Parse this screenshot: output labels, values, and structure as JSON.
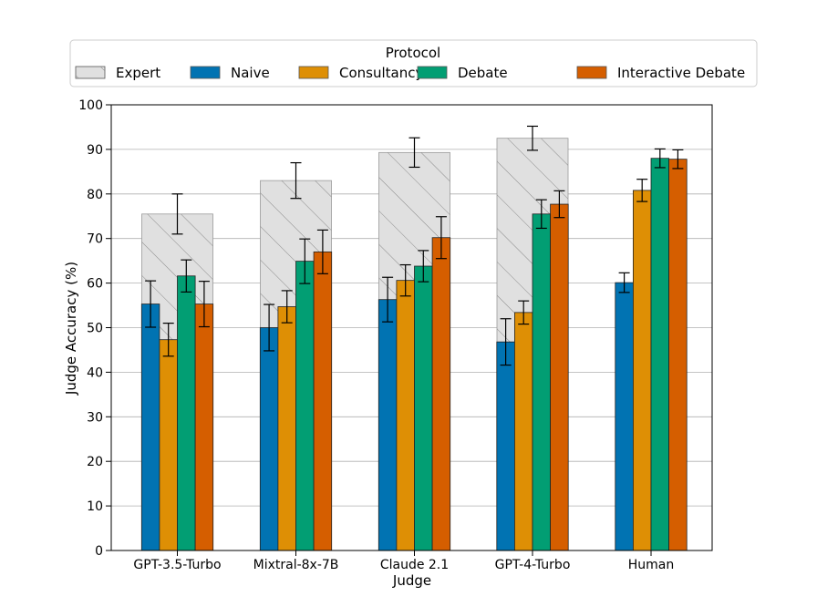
{
  "chart_data": {
    "type": "bar",
    "xlabel": "Judge",
    "ylabel": "Judge Accuracy (%)",
    "ylim": [
      0,
      100
    ],
    "yticks": [
      "0",
      "10",
      "20",
      "30",
      "40",
      "50",
      "60",
      "70",
      "80",
      "90",
      "100"
    ],
    "grid": "y",
    "legend": {
      "title": "Protocol",
      "placement": "top"
    },
    "categories": [
      "GPT-3.5-Turbo",
      "Mixtral-8x-7B",
      "Claude 2.1",
      "GPT-4-Turbo",
      "Human"
    ],
    "expert": {
      "name": "Expert",
      "values": [
        75.5,
        83,
        89.3,
        92.5,
        null
      ],
      "err": [
        4.5,
        4,
        3.3,
        2.7,
        null
      ],
      "color": "#e0e0e0"
    },
    "series": [
      {
        "name": "Naive",
        "color": "#0173b2",
        "values": [
          55.3,
          50,
          56.3,
          46.8,
          60.1
        ],
        "err": [
          5.2,
          5.2,
          5,
          5.2,
          2.2
        ]
      },
      {
        "name": "Consultancy",
        "color": "#de8f05",
        "values": [
          47.3,
          54.7,
          60.6,
          53.4,
          80.8
        ],
        "err": [
          3.7,
          3.6,
          3.5,
          2.6,
          2.5
        ]
      },
      {
        "name": "Debate",
        "color": "#029e73",
        "values": [
          61.6,
          64.9,
          63.8,
          75.5,
          88
        ],
        "err": [
          3.6,
          5,
          3.5,
          3.2,
          2.1
        ]
      },
      {
        "name": "Interactive Debate",
        "color": "#d55e00",
        "values": [
          55.3,
          67,
          70.2,
          77.7,
          87.8
        ],
        "err": [
          5.1,
          4.9,
          4.7,
          3,
          2.1
        ]
      }
    ]
  }
}
